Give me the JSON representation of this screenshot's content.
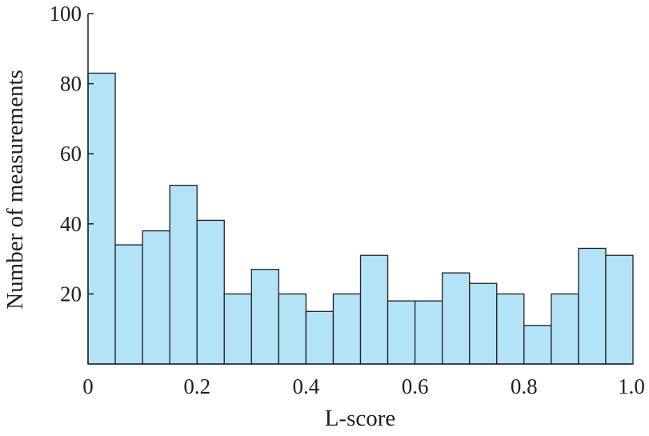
{
  "colors": {
    "bar_fill": "#b3e3f6",
    "bar_stroke": "#231f20",
    "axis": "#231f20"
  },
  "chart_data": {
    "type": "bar",
    "xlabel": "L-score",
    "ylabel": "Number of measurements",
    "xlim": [
      0,
      1.0
    ],
    "ylim": [
      0,
      100
    ],
    "bin_width": 0.05,
    "bin_starts": [
      0.0,
      0.05,
      0.1,
      0.15,
      0.2,
      0.25,
      0.3,
      0.35,
      0.4,
      0.45,
      0.5,
      0.55,
      0.6,
      0.65,
      0.7,
      0.75,
      0.8,
      0.85,
      0.9,
      0.95
    ],
    "values": [
      83,
      34,
      38,
      51,
      41,
      20,
      27,
      20,
      15,
      20,
      31,
      18,
      18,
      26,
      23,
      20,
      11,
      20,
      33,
      31
    ],
    "x_ticks": [
      0,
      0.2,
      0.4,
      0.6,
      0.8,
      1.0
    ],
    "x_tick_labels": [
      "0",
      "0.2",
      "0.4",
      "0.6",
      "0.8",
      "1.0"
    ],
    "y_ticks": [
      20,
      40,
      60,
      80,
      100
    ],
    "y_tick_labels": [
      "20",
      "40",
      "60",
      "80",
      "100"
    ]
  }
}
